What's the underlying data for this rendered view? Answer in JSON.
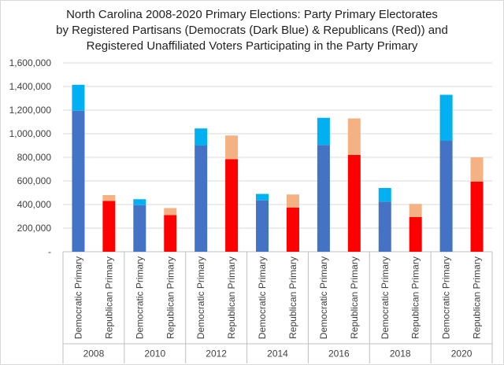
{
  "chart_data": {
    "type": "bar",
    "stacked": true,
    "title_lines": [
      "North Carolina 2008-2020 Primary Elections: Party Primary Electorates",
      "by Registered Partisans (Democrats (Dark Blue) & Republicans (Red)) and",
      "Registered Unaffiliated Voters Participating in the Party Primary"
    ],
    "ylim": [
      0,
      1600000
    ],
    "ytick_values": [
      0,
      200000,
      400000,
      600000,
      800000,
      1000000,
      1200000,
      1400000,
      1600000
    ],
    "ytick_labels": [
      "-",
      "200,000",
      "400,000",
      "600,000",
      "800,000",
      "1,000,000",
      "1,200,000",
      "1,400,000",
      "1,600,000"
    ],
    "grid": true,
    "colors": {
      "dem_registered": "#4472c4",
      "dem_unaffiliated": "#00b0f0",
      "rep_registered": "#ff0000",
      "rep_unaffiliated": "#f4b183"
    },
    "groups": [
      {
        "year": "2008",
        "bars": [
          {
            "label": "Democratic Primary",
            "party": "dem",
            "registered": 1195000,
            "unaffiliated": 220000
          },
          {
            "label": "Republican Primary",
            "party": "rep",
            "registered": 430000,
            "unaffiliated": 50000
          }
        ]
      },
      {
        "year": "2010",
        "bars": [
          {
            "label": "Democratic Primary",
            "party": "dem",
            "registered": 395000,
            "unaffiliated": 50000
          },
          {
            "label": "Republican Primary",
            "party": "rep",
            "registered": 310000,
            "unaffiliated": 60000
          }
        ]
      },
      {
        "year": "2012",
        "bars": [
          {
            "label": "Democratic Primary",
            "party": "dem",
            "registered": 900000,
            "unaffiliated": 145000
          },
          {
            "label": "Republican Primary",
            "party": "rep",
            "registered": 785000,
            "unaffiliated": 200000
          }
        ]
      },
      {
        "year": "2014",
        "bars": [
          {
            "label": "Democratic Primary",
            "party": "dem",
            "registered": 435000,
            "unaffiliated": 55000
          },
          {
            "label": "Republican Primary",
            "party": "rep",
            "registered": 375000,
            "unaffiliated": 110000
          }
        ]
      },
      {
        "year": "2016",
        "bars": [
          {
            "label": "Democratic Primary",
            "party": "dem",
            "registered": 905000,
            "unaffiliated": 230000
          },
          {
            "label": "Republican Primary",
            "party": "rep",
            "registered": 820000,
            "unaffiliated": 310000
          }
        ]
      },
      {
        "year": "2018",
        "bars": [
          {
            "label": "Democratic Primary",
            "party": "dem",
            "registered": 425000,
            "unaffiliated": 115000
          },
          {
            "label": "Republican Primary",
            "party": "rep",
            "registered": 295000,
            "unaffiliated": 110000
          }
        ]
      },
      {
        "year": "2020",
        "bars": [
          {
            "label": "Democratic Primary",
            "party": "dem",
            "registered": 940000,
            "unaffiliated": 390000
          },
          {
            "label": "Republican Primary",
            "party": "rep",
            "registered": 595000,
            "unaffiliated": 205000
          }
        ]
      }
    ]
  }
}
